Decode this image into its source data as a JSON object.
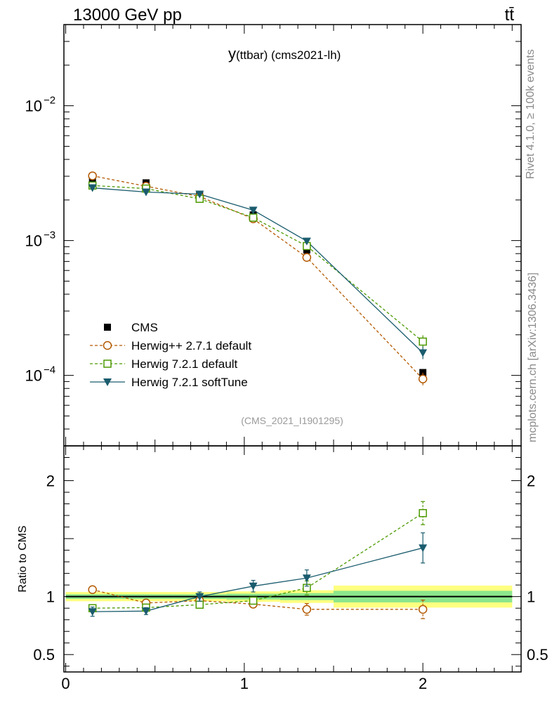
{
  "header": {
    "energy_label": "13000 GeV pp",
    "process_label": "tt̄"
  },
  "side": {
    "rivet_label": "Rivet 4.1.0, ≥ 100k events",
    "source_label": "mcplots.cern.ch [arXiv:1306.3436]"
  },
  "chart_data": {
    "type": "scatter",
    "title": "y(ttbar) (cms2021-lh)",
    "title_main": "y",
    "title_sub": "(ttbar) (cms2021-lh)",
    "watermark": "(CMS_2021_I1901295)",
    "xlabel": "",
    "ylabel_ratio": "Ratio to CMS",
    "x": [
      0.15,
      0.45,
      0.75,
      1.05,
      1.35,
      2.0
    ],
    "xlim": [
      -0.01,
      2.55
    ],
    "ylim_main_log": [
      3e-05,
      0.04
    ],
    "ylim_ratio": [
      0.35,
      2.3
    ],
    "x_ticks": [
      {
        "v": 0,
        "label": "0"
      },
      {
        "v": 1,
        "label": "1"
      },
      {
        "v": 2,
        "label": "2"
      }
    ],
    "y_ticks_main": [
      {
        "v": 0.01,
        "base": "10",
        "exp": "−2"
      },
      {
        "v": 0.001,
        "base": "10",
        "exp": "−3"
      },
      {
        "v": 0.0001,
        "base": "10",
        "exp": "−4"
      }
    ],
    "y_ticks_ratio": [
      {
        "v": 2,
        "label": "2"
      },
      {
        "v": 1,
        "label": "1"
      },
      {
        "v": 0.5,
        "label": "0.5"
      }
    ],
    "data_series": {
      "name": "CMS",
      "values": [
        0.00285,
        0.00268,
        0.0022,
        0.00155,
        0.00085,
        0.000105
      ]
    },
    "ratio_band": [
      {
        "x0": 0.0,
        "x1": 0.3,
        "inner": 0.02,
        "outer": 0.04
      },
      {
        "x0": 0.3,
        "x1": 0.6,
        "inner": 0.02,
        "outer": 0.04
      },
      {
        "x0": 0.6,
        "x1": 0.9,
        "inner": 0.02,
        "outer": 0.04
      },
      {
        "x0": 0.9,
        "x1": 1.2,
        "inner": 0.025,
        "outer": 0.045
      },
      {
        "x0": 1.2,
        "x1": 1.5,
        "inner": 0.03,
        "outer": 0.055
      },
      {
        "x0": 1.5,
        "x1": 2.5,
        "inner": 0.05,
        "outer": 0.095
      }
    ],
    "series": [
      {
        "name": "Herwig++ 2.7.1 default",
        "color": "#b35900",
        "marker": "circle-open",
        "dashed": true,
        "values": [
          0.00302,
          0.00253,
          0.00212,
          0.00145,
          0.00075,
          9.4e-05
        ],
        "ratio": [
          1.06,
          0.945,
          0.965,
          0.935,
          0.89,
          0.89
        ],
        "ratio_err": [
          0.03,
          0.02,
          0.02,
          0.03,
          0.05,
          0.08
        ]
      },
      {
        "name": "Herwig 7.2.1 default",
        "color": "#4c9900",
        "marker": "square-open",
        "dashed": true,
        "values": [
          0.00256,
          0.00243,
          0.00204,
          0.00148,
          0.00091,
          0.000178
        ],
        "ratio": [
          0.9,
          0.905,
          0.93,
          0.965,
          1.075,
          1.72
        ],
        "ratio_err": [
          0.03,
          0.02,
          0.03,
          0.03,
          0.06,
          0.1
        ]
      },
      {
        "name": "Herwig 7.2.1 softTune",
        "color": "#1a5c6e",
        "marker": "triangle-down",
        "dashed": false,
        "values": [
          0.00246,
          0.00229,
          0.00221,
          0.00168,
          0.00099,
          0.000147
        ],
        "ratio": [
          0.87,
          0.875,
          1.0,
          1.09,
          1.16,
          1.42
        ],
        "ratio_err": [
          0.04,
          0.03,
          0.04,
          0.05,
          0.07,
          0.13
        ]
      }
    ]
  }
}
